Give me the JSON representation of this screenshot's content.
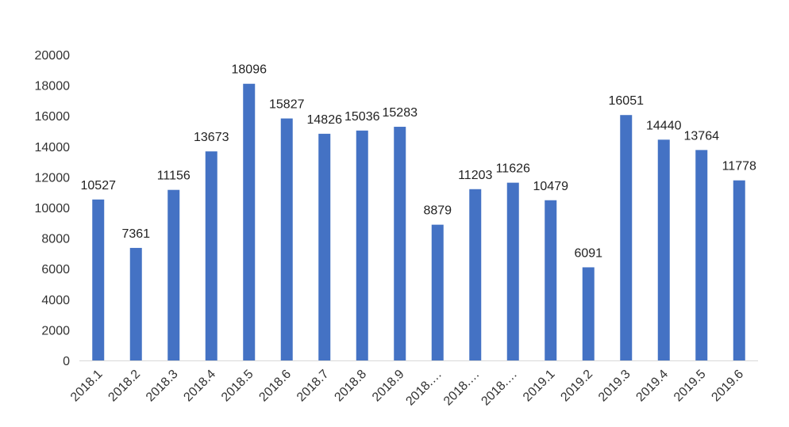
{
  "chart_data": {
    "type": "bar",
    "title": "",
    "xlabel": "",
    "ylabel": "",
    "categories": [
      "2018.1",
      "2018.2",
      "2018.3",
      "2018.4",
      "2018.5",
      "2018.6",
      "2018.7",
      "2018.8",
      "2018.9",
      "2018.…",
      "2018.…",
      "2018.…",
      "2019.1",
      "2019.2",
      "2019.3",
      "2019.4",
      "2019.5",
      "2019.6"
    ],
    "values": [
      10527,
      7361,
      11156,
      13673,
      18096,
      15827,
      14826,
      15036,
      15283,
      8879,
      11203,
      11626,
      10479,
      6091,
      16051,
      14440,
      13764,
      11778
    ],
    "ylim": [
      0,
      20000
    ],
    "yticks": [
      0,
      2000,
      4000,
      6000,
      8000,
      10000,
      12000,
      14000,
      16000,
      18000,
      20000
    ],
    "grid": false,
    "legend": "none",
    "data_labels": true,
    "bar_color": "#4472C4",
    "axis_color": "#D9D9D9"
  }
}
